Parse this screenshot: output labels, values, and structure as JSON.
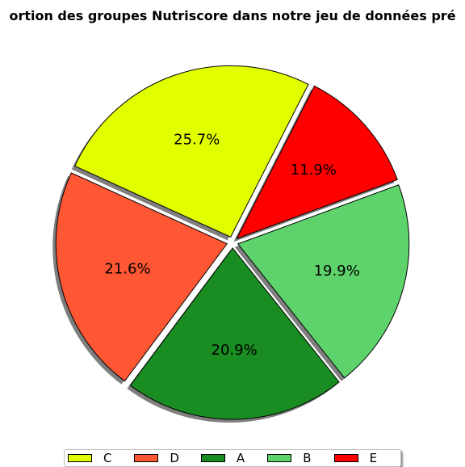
{
  "chart_data": {
    "type": "pie",
    "title": "ortion des groupes Nutriscore dans notre jeu de données pré",
    "slices": [
      {
        "name": "C",
        "value": 25.7,
        "label": "25.7%",
        "color": "#e2ff00"
      },
      {
        "name": "D",
        "value": 21.6,
        "label": "21.6%",
        "color": "#ff5733"
      },
      {
        "name": "A",
        "value": 20.9,
        "label": "20.9%",
        "color": "#198c22"
      },
      {
        "name": "B",
        "value": 19.9,
        "label": "19.9%",
        "color": "#5fd36b"
      },
      {
        "name": "E",
        "value": 11.9,
        "label": "11.9%",
        "color": "#ff0000"
      }
    ],
    "exploded": true,
    "shadow": true,
    "legend_position": "bottom"
  }
}
